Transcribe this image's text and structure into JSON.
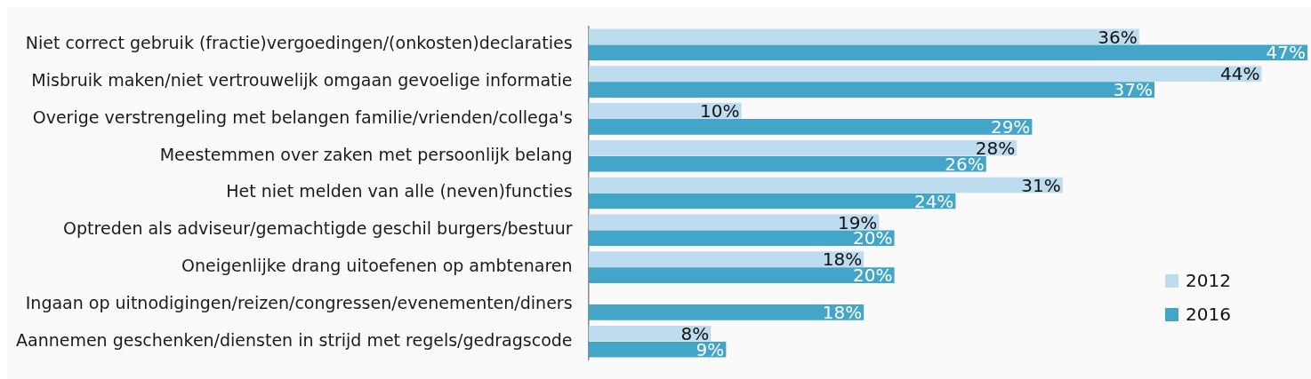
{
  "chart_data": {
    "type": "bar",
    "orientation": "horizontal",
    "legend": "right",
    "categories": [
      "Niet correct gebruik (fractie)vergoedingen/(onkosten)declaraties",
      "Misbruik maken/niet vertrouwelijk omgaan gevoelige informatie",
      "Overige verstrengeling met belangen familie/vrienden/collega's",
      "Meestemmen over zaken met persoonlijk belang",
      "Het niet melden van alle (neven)functies",
      "Optreden als adviseur/gemachtigde geschil burgers/bestuur",
      "Oneigenlijke drang uitoefenen op ambtenaren",
      "Ingaan op uitnodigingen/reizen/congressen/evenementen/diners",
      "Aannemen geschenken/diensten in strijd met regels/gedragscode"
    ],
    "series": [
      {
        "name": "2012",
        "color": "#bddcef",
        "values": [
          36,
          44,
          10,
          28,
          31,
          19,
          18,
          null,
          8
        ],
        "value_labels": [
          "36%",
          "44%",
          "10%",
          "28%",
          "31%",
          "19%",
          "18%",
          null,
          "8%"
        ]
      },
      {
        "name": "2016",
        "color": "#43a5c8",
        "values": [
          47,
          37,
          29,
          26,
          24,
          20,
          20,
          18,
          9
        ],
        "value_labels": [
          "47%",
          "37%",
          "29%",
          "26%",
          "24%",
          "20%",
          "20%",
          "18%",
          "9%"
        ]
      }
    ]
  }
}
